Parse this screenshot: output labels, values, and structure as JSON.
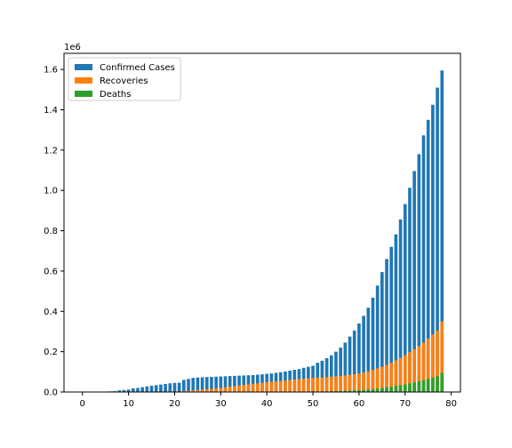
{
  "chart_data": {
    "type": "bar",
    "stacked": false,
    "overlay": true,
    "x": [
      0,
      1,
      2,
      3,
      4,
      5,
      6,
      7,
      8,
      9,
      10,
      11,
      12,
      13,
      14,
      15,
      16,
      17,
      18,
      19,
      20,
      21,
      22,
      23,
      24,
      25,
      26,
      27,
      28,
      29,
      30,
      31,
      32,
      33,
      34,
      35,
      36,
      37,
      38,
      39,
      40,
      41,
      42,
      43,
      44,
      45,
      46,
      47,
      48,
      49,
      50,
      51,
      52,
      53,
      54,
      55,
      56,
      57,
      58,
      59,
      60,
      61,
      62,
      63,
      64,
      65,
      66,
      67,
      68,
      69,
      70,
      71,
      72,
      73,
      74,
      75,
      76,
      77,
      78
    ],
    "series": [
      {
        "name": "Confirmed Cases",
        "color": "#1f77b4",
        "values": [
          0,
          0,
          0,
          0,
          0,
          2000,
          3000,
          4000,
          8000,
          10000,
          12000,
          18000,
          20000,
          24000,
          28000,
          31000,
          34000,
          37000,
          40000,
          43000,
          45000,
          46000,
          60000,
          65000,
          70000,
          72000,
          73000,
          74000,
          75000,
          76000,
          77000,
          78000,
          79000,
          80000,
          81000,
          82000,
          83000,
          84000,
          86000,
          88000,
          90000,
          92000,
          95000,
          98000,
          102000,
          106000,
          110000,
          114000,
          120000,
          125000,
          130000,
          145000,
          155000,
          168000,
          182000,
          200000,
          220000,
          245000,
          275000,
          305000,
          340000,
          378000,
          418000,
          468000,
          528000,
          595000,
          660000,
          720000,
          782000,
          856000,
          932000,
          1013000,
          1096000,
          1180000,
          1273000,
          1350000,
          1425000,
          1510000,
          1595000
        ]
      },
      {
        "name": "Recoveries",
        "color": "#ff7f0e",
        "values": [
          0,
          0,
          0,
          0,
          0,
          0,
          0,
          0,
          0,
          0,
          0,
          0,
          0,
          0,
          1000,
          1000,
          1000,
          1000,
          1000,
          1000,
          2000,
          3000,
          5000,
          6000,
          8000,
          10000,
          12000,
          14000,
          16000,
          18000,
          20000,
          23000,
          26000,
          29000,
          32000,
          35000,
          38000,
          41000,
          43000,
          46000,
          49000,
          51000,
          53000,
          55000,
          57000,
          59000,
          62000,
          64000,
          66000,
          68000,
          70000,
          71000,
          72000,
          74000,
          76000,
          78000,
          80000,
          82000,
          85000,
          88000,
          92000,
          97000,
          103000,
          110000,
          117000,
          125000,
          135000,
          145000,
          157000,
          170000,
          183000,
          198000,
          213000,
          228000,
          245000,
          265000,
          285000,
          305000,
          350000
        ]
      },
      {
        "name": "Deaths",
        "color": "#2ca02c",
        "values": [
          0,
          0,
          0,
          0,
          0,
          0,
          0,
          0,
          0,
          0,
          0,
          0,
          0,
          0,
          0,
          0,
          0,
          0,
          0,
          0,
          0,
          0,
          0,
          0,
          0,
          0,
          1000,
          1000,
          1000,
          1000,
          1000,
          1000,
          1000,
          1000,
          1000,
          2000,
          2000,
          2000,
          2000,
          2000,
          2000,
          2000,
          2000,
          2000,
          2000,
          2000,
          2000,
          2000,
          2000,
          2000,
          3000,
          3000,
          3000,
          3000,
          4000,
          4000,
          5000,
          6000,
          7000,
          8000,
          9000,
          11000,
          13000,
          15000,
          17000,
          20000,
          23000,
          26000,
          30000,
          34000,
          38000,
          43000,
          48000,
          53000,
          59000,
          65000,
          71000,
          78000,
          95000
        ]
      }
    ],
    "xlim": [
      -4,
      82
    ],
    "ylim": [
      0,
      1680000
    ],
    "xticks": [
      "0",
      "10",
      "20",
      "30",
      "40",
      "50",
      "60",
      "70",
      "80"
    ],
    "xtick_values": [
      0,
      10,
      20,
      30,
      40,
      50,
      60,
      70,
      80
    ],
    "yticks": [
      "0.0",
      "0.2",
      "0.4",
      "0.6",
      "0.8",
      "1.0",
      "1.2",
      "1.4",
      "1.6"
    ],
    "ytick_values": [
      0,
      200000,
      400000,
      600000,
      800000,
      1000000,
      1200000,
      1400000,
      1600000
    ],
    "y_offset_label": "1e6",
    "legend_position": "upper-left",
    "grid": false
  }
}
